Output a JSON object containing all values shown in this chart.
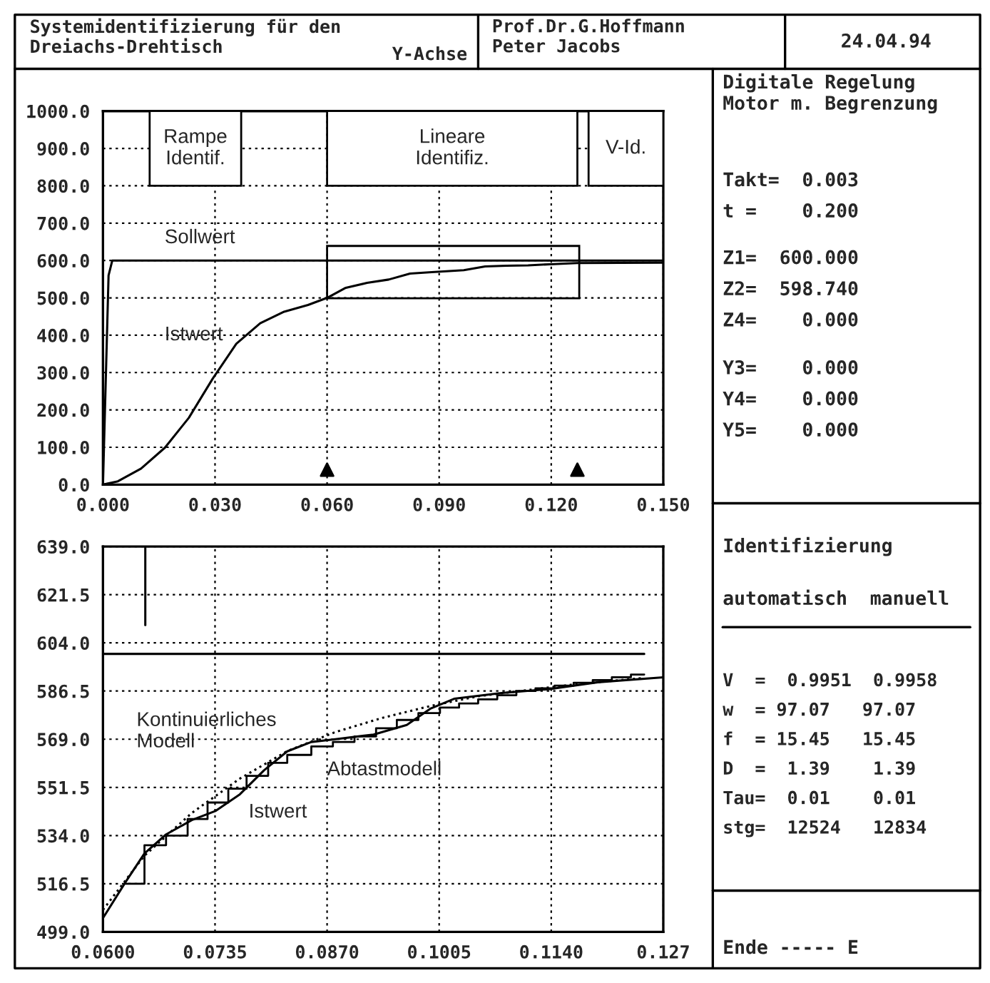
{
  "chart_data": [
    {
      "type": "line",
      "xlim": [
        0,
        0.15
      ],
      "xticks": [
        {
          "value": 0,
          "label": "0.000"
        },
        {
          "value": 0.03,
          "label": "0.030"
        },
        {
          "value": 0.06,
          "label": "0.060"
        },
        {
          "value": 0.09,
          "label": "0.090"
        },
        {
          "value": 0.12,
          "label": "0.120"
        },
        {
          "value": 0.15,
          "label": "0.150"
        }
      ],
      "ylim": [
        0,
        1000
      ],
      "yticks": [
        {
          "value": 0,
          "label": "0.0"
        },
        {
          "value": 100,
          "label": "100.0"
        },
        {
          "value": 200,
          "label": "200.0"
        },
        {
          "value": 300,
          "label": "300.0"
        },
        {
          "value": 400,
          "label": "400.0"
        },
        {
          "value": 500,
          "label": "500.0"
        },
        {
          "value": 600,
          "label": "600.0"
        },
        {
          "value": 700,
          "label": "700.0"
        },
        {
          "value": 800,
          "label": "800.0"
        },
        {
          "value": 900,
          "label": "900.0"
        },
        {
          "value": 1000,
          "label": "1000.0"
        }
      ],
      "grid": true,
      "series": [
        {
          "color": "#000000",
          "x": [
            0,
            0.0015,
            0.0025,
            0.15
          ],
          "values": [
            0,
            560,
            600,
            600
          ]
        },
        {
          "color": "#000000",
          "x": [
            0,
            0.004,
            0.0102,
            0.0166,
            0.023,
            0.0294,
            0.0357,
            0.0421,
            0.0485,
            0.0549,
            0.06,
            0.065,
            0.0707,
            0.0765,
            0.0822,
            0.088,
            0.0966,
            0.1023,
            0.108,
            0.1138,
            0.1196,
            0.127,
            0.15
          ],
          "values": [
            0,
            9,
            43,
            99,
            179,
            284,
            377,
            432,
            463,
            481,
            500,
            527,
            540,
            549,
            565,
            569,
            574,
            584,
            586,
            587,
            590,
            593,
            594
          ]
        },
        {
          "type": "scatter",
          "marker": "triangle",
          "color": "#000000",
          "x": [
            0.06,
            0.127
          ],
          "values": [
            40,
            40
          ]
        }
      ],
      "bands": [
        {
          "axis": "x",
          "from": 0.0125,
          "to": 0.037,
          "label": "Rampe\nIdentif."
        },
        {
          "axis": "x",
          "from": 0.06,
          "to": 0.127,
          "label": "Lineare\nIdentifiz."
        },
        {
          "axis": "x",
          "from": 0.13,
          "to": 0.15,
          "label": "V-Id."
        }
      ],
      "annotations": [
        "Sollwert",
        "Istwert"
      ]
    },
    {
      "type": "line",
      "xlim": [
        0.06,
        0.1275
      ],
      "xticks": [
        {
          "value": 0.06,
          "label": "0.0600"
        },
        {
          "value": 0.0735,
          "label": "0.0735"
        },
        {
          "value": 0.087,
          "label": "0.0870"
        },
        {
          "value": 0.1005,
          "label": "0.1005"
        },
        {
          "value": 0.114,
          "label": "0.1140"
        },
        {
          "value": 0.1275,
          "label": "0.127"
        }
      ],
      "ylim": [
        499,
        639
      ],
      "yticks": [
        {
          "value": 499,
          "label": "499.0"
        },
        {
          "value": 516.5,
          "label": "516.5"
        },
        {
          "value": 534,
          "label": "534.0"
        },
        {
          "value": 551.5,
          "label": "551.5"
        },
        {
          "value": 569,
          "label": "569.0"
        },
        {
          "value": 586.5,
          "label": "586.5"
        },
        {
          "value": 604,
          "label": "604.0"
        },
        {
          "value": 621.5,
          "label": "621.5"
        },
        {
          "value": 639,
          "label": "639.0"
        }
      ],
      "grid": true,
      "series": [
        {
          "color": "#000000",
          "x": [
            0.06,
            0.1252
          ],
          "values": [
            600,
            600
          ]
        },
        {
          "color": "#000000",
          "x": [
            0.0651,
            0.0651
          ],
          "values": [
            639,
            610.5
          ]
        },
        {
          "color": "#000000",
          "x": [
            0.06,
            0.0627,
            0.065,
            0.0676,
            0.0707,
            0.0736,
            0.0765,
            0.0794,
            0.0822,
            0.0851,
            0.088,
            0.0926,
            0.0966,
            0.0995,
            0.1023,
            0.108,
            0.1138,
            0.1196,
            0.1275
          ],
          "values": [
            504,
            517,
            527.5,
            534.4,
            539.6,
            543,
            549,
            557.7,
            564.6,
            568,
            569,
            570.7,
            574.2,
            580.2,
            583.7,
            585.8,
            587.2,
            589.7,
            591.5
          ]
        },
        {
          "type": "step",
          "color": "#000000",
          "x": [
            0.0627,
            0.065,
            0.0676,
            0.0702,
            0.0726,
            0.0751,
            0.0773,
            0.0799,
            0.0822,
            0.0851,
            0.0877,
            0.0903,
            0.0929,
            0.0954,
            0.098,
            0.1006,
            0.1029,
            0.1052,
            0.1075,
            0.1098,
            0.1121,
            0.1144,
            0.1167,
            0.119,
            0.1213,
            0.1236,
            0.1252
          ],
          "values": [
            516.5,
            530.5,
            534,
            540,
            546,
            551,
            555.7,
            560.4,
            563.3,
            566.4,
            568,
            570,
            573,
            576,
            578.5,
            580.5,
            582,
            583.5,
            585,
            586.5,
            587.5,
            588.5,
            589.5,
            590.5,
            591.5,
            592.5,
            592.5
          ]
        },
        {
          "color": "#000000",
          "line_style": "dotted",
          "x": [
            0.06,
            0.065,
            0.0707,
            0.0765,
            0.0822,
            0.088,
            0.0937,
            0.0995,
            0.1052,
            0.111,
            0.1167,
            0.1252
          ],
          "values": [
            507,
            526.7,
            542.2,
            554.7,
            564.7,
            571.6,
            576.8,
            581.1,
            584.6,
            586.8,
            588.9,
            591.3
          ]
        }
      ],
      "annotations": [
        "Kontinuierliches\nModell",
        "Abtastmodell",
        "Istwert"
      ]
    },
    {
      "type": "other",
      "annotations": [
        "Systemidentifizierung für den\nDreiachs-Drehtisch",
        "Y-Achse",
        "Prof.Dr.G.Hoffmann\nPeter Jacobs",
        "24.04.94",
        "Digitale Regelung\nMotor m. Begrenzung",
        "Takt=  0.003\nt =    0.200",
        "Z1=  600.000\nZ2=  598.740\nZ4=    0.000",
        "Y3=    0.000\nY4=    0.000\nY5=    0.000",
        "Identifizierung",
        "automatisch  manuell",
        "V  =  0.9951  0.9958\nw  = 97.07   97.07\nf  = 15.45   15.45\nD  =  1.39    1.39\nTau=  0.01    0.01\nstg=  12524   12834",
        "Ende ----- E"
      ]
    }
  ]
}
